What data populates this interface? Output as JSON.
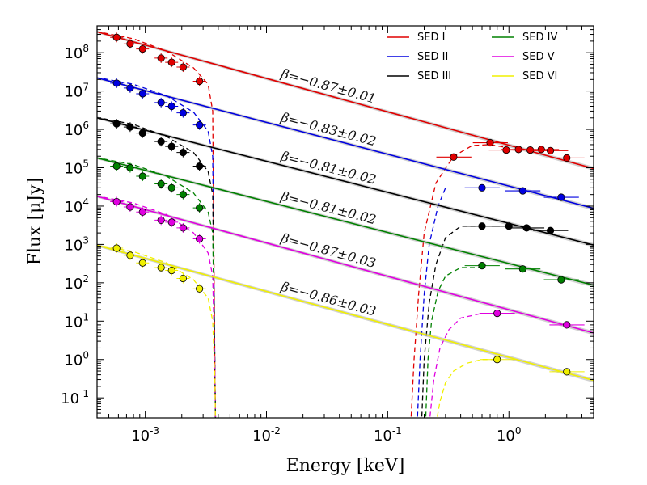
{
  "chart_data": {
    "type": "line",
    "xlabel": "Energy [keV]",
    "ylabel": "Flux [μJy]",
    "x_scale": "log",
    "y_scale": "log",
    "xlim": [
      0.0004,
      5.0
    ],
    "ylim": [
      0.03,
      500000000
    ],
    "x_ticks": [
      {
        "value": 0.001,
        "base": "10",
        "exp": "-3"
      },
      {
        "value": 0.01,
        "base": "10",
        "exp": "-2"
      },
      {
        "value": 0.1,
        "base": "10",
        "exp": "-1"
      },
      {
        "value": 1,
        "base": "10",
        "exp": "0"
      }
    ],
    "y_ticks": [
      {
        "value": 0.1,
        "base": "10",
        "exp": "-1"
      },
      {
        "value": 1,
        "base": "10",
        "exp": "0"
      },
      {
        "value": 10,
        "base": "10",
        "exp": "1"
      },
      {
        "value": 100,
        "base": "10",
        "exp": "2"
      },
      {
        "value": 1000,
        "base": "10",
        "exp": "3"
      },
      {
        "value": 10000,
        "base": "10",
        "exp": "4"
      },
      {
        "value": 100000,
        "base": "10",
        "exp": "5"
      },
      {
        "value": 1000000,
        "base": "10",
        "exp": "6"
      },
      {
        "value": 10000000,
        "base": "10",
        "exp": "7"
      },
      {
        "value": 100000000,
        "base": "10",
        "exp": "8"
      }
    ],
    "legend_position": "top-right",
    "series": [
      {
        "name": "SED I",
        "color": "#e00000",
        "powerlaw": {
          "norm_at_xmin": 350000000,
          "slope": -0.87
        },
        "beta_label": "β=−0.87±0.01",
        "beta_at_x": 0.013,
        "uv_points": [
          [
            0.00058,
            250000000
          ],
          [
            0.00075,
            170000000
          ],
          [
            0.00095,
            125000000
          ],
          [
            0.00135,
            72000000
          ],
          [
            0.00165,
            56000000
          ],
          [
            0.00205,
            42000000
          ],
          [
            0.0028,
            18000000
          ]
        ],
        "uv_cutoff": {
          "x": [
            0.00045,
            0.0008,
            0.0015,
            0.0025,
            0.0033,
            0.0036,
            0.00375,
            0.0038
          ],
          "y": [
            330000000,
            230000000,
            110000000,
            40000000,
            15000000,
            3000000,
            0.5,
            0.02
          ]
        },
        "xray_points": [
          [
            0.35,
            190000
          ],
          [
            0.7,
            450000
          ],
          [
            0.95,
            290000
          ],
          [
            1.2,
            300000
          ],
          [
            1.5,
            290000
          ],
          [
            1.85,
            300000
          ],
          [
            2.2,
            280000
          ],
          [
            3.0,
            180000
          ]
        ],
        "xray_rise": {
          "x": [
            0.155,
            0.165,
            0.18,
            0.2,
            0.25,
            0.35,
            0.5,
            0.7,
            1.0
          ],
          "y": [
            0.02,
            1,
            50,
            2000,
            40000,
            200000,
            380000,
            400000,
            330000
          ]
        }
      },
      {
        "name": "SED II",
        "color": "#0000e0",
        "powerlaw": {
          "norm_at_xmin": 22000000,
          "slope": -0.83
        },
        "beta_label": "β=−0.83±0.02",
        "beta_at_x": 0.013,
        "uv_points": [
          [
            0.00058,
            16000000
          ],
          [
            0.00075,
            12000000
          ],
          [
            0.00095,
            8500000
          ],
          [
            0.00135,
            5000000
          ],
          [
            0.00165,
            4000000
          ],
          [
            0.00205,
            2700000
          ],
          [
            0.0028,
            1300000
          ]
        ],
        "uv_cutoff": {
          "x": [
            0.00045,
            0.0008,
            0.0015,
            0.0025,
            0.0033,
            0.0036,
            0.00375,
            0.0038
          ],
          "y": [
            21000000,
            15000000,
            7500000,
            2800000,
            900000,
            200000,
            0.5,
            0.02
          ]
        },
        "xray_points": [
          [
            0.6,
            30000
          ],
          [
            1.3,
            25000
          ],
          [
            2.7,
            17000
          ]
        ],
        "xray_rise": {
          "x": [
            0.175,
            0.185,
            0.2,
            0.22,
            0.26,
            0.3
          ],
          "y": [
            0.02,
            1,
            50,
            1000,
            10000,
            30000
          ]
        }
      },
      {
        "name": "SED III",
        "color": "#000000",
        "powerlaw": {
          "norm_at_xmin": 2000000,
          "slope": -0.81
        },
        "beta_label": "β=−0.81±0.02",
        "beta_at_x": 0.013,
        "uv_points": [
          [
            0.00058,
            1400000
          ],
          [
            0.00075,
            1150000
          ],
          [
            0.00095,
            800000
          ],
          [
            0.00135,
            480000
          ],
          [
            0.00165,
            360000
          ],
          [
            0.00205,
            250000
          ],
          [
            0.0028,
            110000
          ]
        ],
        "uv_cutoff": {
          "x": [
            0.00045,
            0.0008,
            0.0015,
            0.0025,
            0.0033,
            0.0036,
            0.00375,
            0.0038
          ],
          "y": [
            1900000,
            1350000,
            650000,
            250000,
            80000,
            20000,
            0.5,
            0.02
          ]
        },
        "xray_points": [
          [
            0.6,
            3000
          ],
          [
            1.0,
            3000
          ],
          [
            1.4,
            2700
          ],
          [
            2.2,
            2300
          ]
        ],
        "xray_rise": {
          "x": [
            0.19,
            0.2,
            0.22,
            0.25,
            0.3,
            0.4,
            0.6
          ],
          "y": [
            0.02,
            1,
            30,
            300,
            1500,
            3000,
            3000
          ]
        }
      },
      {
        "name": "SED IV",
        "color": "#008000",
        "powerlaw": {
          "norm_at_xmin": 180000,
          "slope": -0.81
        },
        "beta_label": "β=−0.81±0.02",
        "beta_at_x": 0.013,
        "uv_points": [
          [
            0.00058,
            110000
          ],
          [
            0.00075,
            100000
          ],
          [
            0.00095,
            60000
          ],
          [
            0.00135,
            38000
          ],
          [
            0.00165,
            30000
          ],
          [
            0.00205,
            20000
          ],
          [
            0.0028,
            9000
          ]
        ],
        "uv_cutoff": {
          "x": [
            0.00045,
            0.0008,
            0.0015,
            0.0025,
            0.0033,
            0.0036,
            0.00375,
            0.0038
          ],
          "y": [
            170000,
            120000,
            60000,
            22000,
            7000,
            2000,
            0.5,
            0.02
          ]
        },
        "xray_points": [
          [
            0.6,
            280
          ],
          [
            1.3,
            230
          ],
          [
            2.7,
            120
          ]
        ],
        "xray_rise": {
          "x": [
            0.205,
            0.215,
            0.23,
            0.26,
            0.3,
            0.4,
            0.6
          ],
          "y": [
            0.02,
            1,
            10,
            60,
            150,
            250,
            250
          ]
        }
      },
      {
        "name": "SED V",
        "color": "#e000e0",
        "powerlaw": {
          "norm_at_xmin": 18000,
          "slope": -0.87
        },
        "beta_label": "β=−0.87±0.03",
        "beta_at_x": 0.013,
        "uv_points": [
          [
            0.00058,
            13000
          ],
          [
            0.00075,
            9500
          ],
          [
            0.00095,
            7000
          ],
          [
            0.00135,
            4300
          ],
          [
            0.00165,
            3800
          ],
          [
            0.00205,
            2700
          ],
          [
            0.0028,
            1400
          ]
        ],
        "uv_cutoff": {
          "x": [
            0.00045,
            0.0008,
            0.0015,
            0.0025,
            0.0033,
            0.0036,
            0.00375,
            0.0038
          ],
          "y": [
            17000,
            12000,
            6000,
            2000,
            600,
            150,
            0.5,
            0.02
          ]
        },
        "xray_points": [
          [
            0.8,
            16
          ],
          [
            3.0,
            8
          ]
        ],
        "xray_rise": {
          "x": [
            0.22,
            0.24,
            0.27,
            0.32,
            0.4,
            0.6,
            0.8
          ],
          "y": [
            0.02,
            0.3,
            2,
            6,
            12,
            16,
            16
          ]
        }
      },
      {
        "name": "SED VI",
        "color": "#f0f000",
        "powerlaw": {
          "norm_at_xmin": 950,
          "slope": -0.86
        },
        "beta_label": "β=−0.86±0.03",
        "beta_at_x": 0.013,
        "uv_points": [
          [
            0.00058,
            800
          ],
          [
            0.00075,
            520
          ],
          [
            0.00095,
            330
          ],
          [
            0.00135,
            250
          ],
          [
            0.00165,
            210
          ],
          [
            0.00205,
            130
          ],
          [
            0.0028,
            70
          ]
        ],
        "uv_cutoff": {
          "x": [
            0.00045,
            0.0008,
            0.0015,
            0.0025,
            0.0033,
            0.0036,
            0.00375,
            0.0038
          ],
          "y": [
            900,
            650,
            330,
            120,
            40,
            10,
            0.3,
            0.02
          ]
        },
        "xray_points": [
          [
            0.8,
            1.0
          ],
          [
            3.0,
            0.48
          ]
        ],
        "xray_rise": {
          "x": [
            0.25,
            0.27,
            0.3,
            0.35,
            0.45,
            0.6,
            0.8
          ],
          "y": [
            0.02,
            0.08,
            0.25,
            0.5,
            0.8,
            1.0,
            1.0
          ]
        }
      }
    ]
  }
}
